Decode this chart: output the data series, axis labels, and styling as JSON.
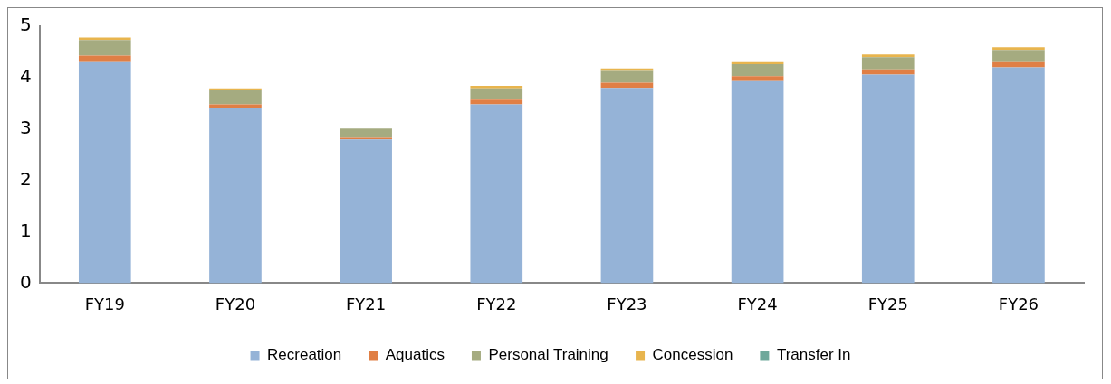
{
  "chart_data": {
    "type": "bar",
    "stacked": true,
    "categories": [
      "FY19",
      "FY20",
      "FY21",
      "FY22",
      "FY23",
      "FY24",
      "FY25",
      "FY26"
    ],
    "series": [
      {
        "name": "Recreation",
        "color": "#95b3d7",
        "values": [
          4.3,
          3.4,
          2.8,
          3.48,
          3.8,
          3.93,
          4.06,
          4.2
        ]
      },
      {
        "name": "Aquatics",
        "color": "#e07f45",
        "values": [
          0.13,
          0.08,
          0.03,
          0.09,
          0.1,
          0.1,
          0.1,
          0.1
        ]
      },
      {
        "name": "Personal Training",
        "color": "#a5ab80",
        "values": [
          0.3,
          0.27,
          0.18,
          0.22,
          0.23,
          0.23,
          0.24,
          0.24
        ]
      },
      {
        "name": "Concession",
        "color": "#e8b54e",
        "values": [
          0.05,
          0.04,
          null,
          0.05,
          0.05,
          0.04,
          0.05,
          0.05
        ]
      },
      {
        "name": "Transfer In",
        "color": "#6fa89b",
        "values": [
          0,
          0,
          0,
          0,
          0,
          0,
          0,
          0
        ]
      }
    ],
    "ylim": [
      0,
      5
    ],
    "yticks": [
      0,
      1,
      2,
      3,
      4,
      5
    ],
    "grid": false,
    "legend": "bottom"
  }
}
